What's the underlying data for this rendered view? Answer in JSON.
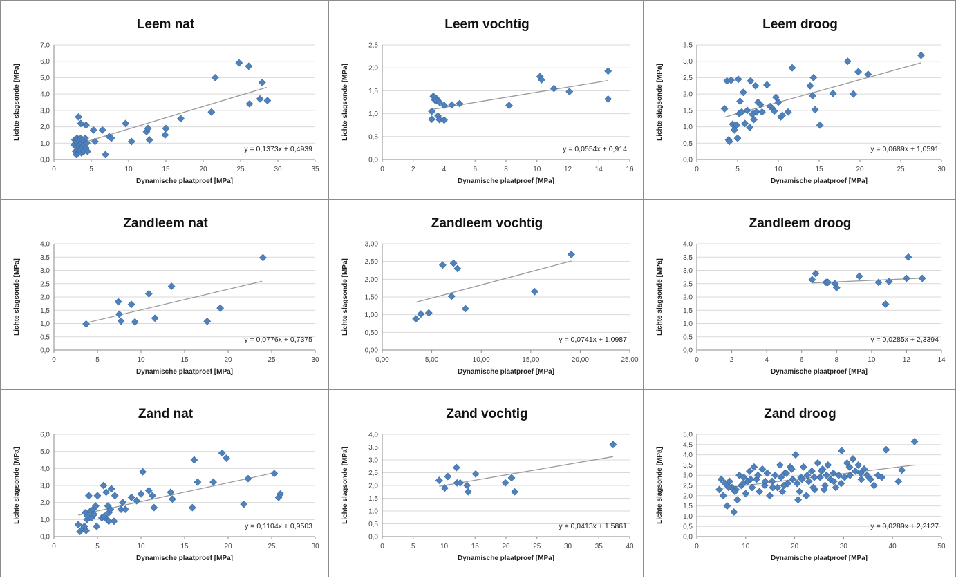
{
  "chart_data": [
    {
      "type": "scatter",
      "title": "Leem nat",
      "xlabel": "Dynamische plaatproef [MPa]",
      "ylabel": "Lichte slagsonde [MPa]",
      "xlim": [
        0,
        35
      ],
      "ylim": [
        0,
        7
      ],
      "xticks": [
        "0",
        "5",
        "10",
        "15",
        "20",
        "25",
        "30",
        "35"
      ],
      "yticks": [
        "0,0",
        "1,0",
        "2,0",
        "3,0",
        "4,0",
        "5,0",
        "6,0",
        "7,0"
      ],
      "equation": "y = 0,1373x + 0,4939",
      "trend": {
        "slope": 0.1373,
        "intercept": 0.4939,
        "x_range": [
          2.7,
          28.5
        ]
      },
      "x": [
        2.7,
        2.8,
        2.9,
        3.0,
        3.0,
        3.1,
        3.1,
        3.2,
        3.2,
        3.3,
        3.3,
        3.4,
        3.4,
        3.5,
        3.5,
        3.6,
        3.6,
        3.7,
        3.7,
        3.8,
        3.9,
        4.0,
        4.0,
        4.1,
        4.2,
        4.3,
        4.4,
        4.5,
        3.3,
        3.6,
        4.3,
        5.3,
        5.5,
        6.5,
        6.9,
        7.4,
        7.7,
        9.6,
        10.4,
        12.4,
        12.6,
        12.8,
        14.9,
        15.0,
        17.0,
        21.1,
        21.6,
        24.8,
        26.1,
        26.2,
        27.6,
        27.9,
        28.6
      ],
      "y": [
        0.9,
        1.2,
        0.5,
        1.1,
        0.3,
        0.8,
        1.3,
        0.6,
        1.0,
        0.4,
        1.2,
        0.7,
        1.1,
        0.5,
        0.9,
        1.3,
        0.6,
        1.0,
        0.4,
        1.2,
        0.8,
        1.1,
        0.5,
        0.9,
        1.3,
        0.7,
        1.0,
        0.5,
        2.6,
        2.2,
        2.1,
        1.8,
        1.1,
        1.8,
        0.3,
        1.4,
        1.3,
        2.2,
        1.1,
        1.7,
        1.9,
        1.2,
        1.5,
        1.9,
        2.5,
        2.9,
        5.0,
        5.9,
        5.7,
        3.4,
        3.7,
        4.7,
        3.6
      ]
    },
    {
      "type": "scatter",
      "title": "Leem vochtig",
      "xlabel": "Dynamische plaatproef [MPa]",
      "ylabel": "Lichte slagsonde [MPa]",
      "xlim": [
        0,
        16
      ],
      "ylim": [
        0,
        2.5
      ],
      "xticks": [
        "0",
        "2",
        "4",
        "6",
        "8",
        "10",
        "12",
        "14",
        "16"
      ],
      "yticks": [
        "0,0",
        "0,5",
        "1,0",
        "1,5",
        "2,0",
        "2,5"
      ],
      "equation": "y = 0,0554x + 0,914",
      "trend": {
        "slope": 0.0554,
        "intercept": 0.914,
        "x_range": [
          3.2,
          14.6
        ]
      },
      "x": [
        3.2,
        3.2,
        3.3,
        3.4,
        3.5,
        3.5,
        3.6,
        3.7,
        3.7,
        4.0,
        4.0,
        4.5,
        5.0,
        8.2,
        10.2,
        10.3,
        11.1,
        12.1,
        14.6,
        14.6
      ],
      "y": [
        1.05,
        0.88,
        1.38,
        1.3,
        1.33,
        1.28,
        0.95,
        1.25,
        0.87,
        1.18,
        0.86,
        1.19,
        1.22,
        1.18,
        1.81,
        1.74,
        1.55,
        1.48,
        1.93,
        1.32
      ]
    },
    {
      "type": "scatter",
      "title": "Leem droog",
      "xlabel": "Dynamische plaatproef [MPa]",
      "ylabel": "Lichte slagsonde [MPa]",
      "xlim": [
        0,
        30
      ],
      "ylim": [
        0,
        3.5
      ],
      "xticks": [
        "0",
        "5",
        "10",
        "15",
        "20",
        "25",
        "30"
      ],
      "yticks": [
        "0,0",
        "0,5",
        "1,0",
        "1,5",
        "2,0",
        "2,5",
        "3,0",
        "3,5"
      ],
      "equation": "y = 0,0689x + 1,0591",
      "trend": {
        "slope": 0.0689,
        "intercept": 1.0591,
        "x_range": [
          3.4,
          27.5
        ]
      },
      "x": [
        3.4,
        3.7,
        3.9,
        4.0,
        4.2,
        4.4,
        4.6,
        4.9,
        5.0,
        5.1,
        5.2,
        5.3,
        5.5,
        5.7,
        5.9,
        6.2,
        6.5,
        6.6,
        6.8,
        7.0,
        7.2,
        7.3,
        7.5,
        7.8,
        8.0,
        8.6,
        9.0,
        9.3,
        9.5,
        9.7,
        10.0,
        10.3,
        10.5,
        11.2,
        11.7,
        13.9,
        14.2,
        14.3,
        14.5,
        15.1,
        16.7,
        18.5,
        19.2,
        19.8,
        21.0,
        27.5
      ],
      "y": [
        1.55,
        2.4,
        0.6,
        0.55,
        2.42,
        1.08,
        0.9,
        1.05,
        0.65,
        2.45,
        1.4,
        1.78,
        1.45,
        2.05,
        1.1,
        1.5,
        0.98,
        2.4,
        1.38,
        1.22,
        2.25,
        1.45,
        1.75,
        1.68,
        1.45,
        2.28,
        1.62,
        1.55,
        1.48,
        1.9,
        1.75,
        1.3,
        1.35,
        1.45,
        2.8,
        2.25,
        1.95,
        2.5,
        1.52,
        1.05,
        2.02,
        3.0,
        2.0,
        2.68,
        2.6,
        3.18
      ]
    },
    {
      "type": "scatter",
      "title": "Zandleem nat",
      "xlabel": "Dynamische plaatproef [MPa]",
      "ylabel": "Lichte slagsonde [MPa]",
      "xlim": [
        0,
        30
      ],
      "ylim": [
        0,
        4
      ],
      "xticks": [
        "0",
        "5",
        "10",
        "15",
        "20",
        "25",
        "30"
      ],
      "yticks": [
        "0,0",
        "0,5",
        "1,0",
        "1,5",
        "2,0",
        "2,5",
        "3,0",
        "3,5",
        "4,0"
      ],
      "equation": "y = 0,0776x + 0,7375",
      "trend": {
        "slope": 0.0776,
        "intercept": 0.7375,
        "x_range": [
          3.7,
          23.9
        ]
      },
      "x": [
        3.7,
        7.4,
        7.5,
        7.7,
        8.9,
        9.3,
        10.9,
        11.6,
        13.5,
        17.6,
        19.1,
        24.0
      ],
      "y": [
        0.98,
        1.82,
        1.35,
        1.09,
        1.72,
        1.06,
        2.12,
        1.2,
        2.4,
        1.08,
        1.58,
        3.48
      ]
    },
    {
      "type": "scatter",
      "title": "Zandleem vochtig",
      "xlabel": "Dynamische plaatproef [MPa]",
      "ylabel": "Lichte slagsonde [MPa]",
      "xlim": [
        0,
        25
      ],
      "ylim": [
        0,
        3
      ],
      "xticks": [
        "0,00",
        "5,00",
        "10,00",
        "15,00",
        "20,00",
        "25,00"
      ],
      "yticks": [
        "0,00",
        "0,50",
        "1,00",
        "1,50",
        "2,00",
        "2,50",
        "3,00"
      ],
      "equation": "y = 0,0741x + 1,0987",
      "trend": {
        "slope": 0.0741,
        "intercept": 1.0987,
        "x_range": [
          3.4,
          19.1
        ]
      },
      "x": [
        3.4,
        3.9,
        4.7,
        6.1,
        7.0,
        7.2,
        7.6,
        8.4,
        15.4,
        19.1
      ],
      "y": [
        0.88,
        1.02,
        1.05,
        2.4,
        1.52,
        2.45,
        2.3,
        1.17,
        1.65,
        2.7
      ]
    },
    {
      "type": "scatter",
      "title": "Zandleem droog",
      "xlabel": "Dynamische plaatproef [MPa]",
      "ylabel": "Lichte slagsonde [MPa]",
      "xlim": [
        0,
        14
      ],
      "ylim": [
        0,
        4
      ],
      "xticks": [
        "0",
        "2",
        "4",
        "6",
        "8",
        "10",
        "12",
        "14"
      ],
      "yticks": [
        "0,0",
        "0,5",
        "1,0",
        "1,5",
        "2,0",
        "2,5",
        "3,0",
        "3,5",
        "4,0"
      ],
      "equation": "y = 0,0285x + 2,3394",
      "trend": {
        "slope": 0.0285,
        "intercept": 2.3394,
        "x_range": [
          6.6,
          12.9
        ]
      },
      "x": [
        6.6,
        6.8,
        7.4,
        7.5,
        7.9,
        8.0,
        9.3,
        10.4,
        10.8,
        11.0,
        12.0,
        12.1,
        12.9
      ],
      "y": [
        2.65,
        2.88,
        2.55,
        2.55,
        2.5,
        2.35,
        2.78,
        2.55,
        1.73,
        2.58,
        2.7,
        3.5,
        2.7
      ]
    },
    {
      "type": "scatter",
      "title": "Zand nat",
      "xlabel": "Dynamische plaatproef [MPa]",
      "ylabel": "Lichte slagsonde [MPa]",
      "xlim": [
        0,
        30
      ],
      "ylim": [
        0,
        6
      ],
      "xticks": [
        "0",
        "5",
        "10",
        "15",
        "20",
        "25",
        "30"
      ],
      "yticks": [
        "0,0",
        "1,0",
        "2,0",
        "3,0",
        "4,0",
        "5,0",
        "6,0"
      ],
      "equation": "y = 0,1104x + 0,9503",
      "trend": {
        "slope": 0.1104,
        "intercept": 0.9503,
        "x_range": [
          2.8,
          25.8
        ]
      },
      "x": [
        2.8,
        3.0,
        3.3,
        3.5,
        3.6,
        3.7,
        3.8,
        3.9,
        4.0,
        4.2,
        4.3,
        4.5,
        4.6,
        4.8,
        4.9,
        5.0,
        5.5,
        5.7,
        5.8,
        6.0,
        6.1,
        6.2,
        6.3,
        6.3,
        6.5,
        6.6,
        6.9,
        7.0,
        7.7,
        7.9,
        8.2,
        8.9,
        9.5,
        10.0,
        10.2,
        10.9,
        11.3,
        11.5,
        13.4,
        13.6,
        15.9,
        16.1,
        16.5,
        18.3,
        19.3,
        19.8,
        21.8,
        22.3,
        25.3,
        25.8,
        26.0
      ],
      "y": [
        0.7,
        0.3,
        0.45,
        0.6,
        1.4,
        0.35,
        1.0,
        1.2,
        2.4,
        1.5,
        1.1,
        1.6,
        1.3,
        1.8,
        0.6,
        2.4,
        1.1,
        3.0,
        1.2,
        2.6,
        1.0,
        1.8,
        1.4,
        0.9,
        1.6,
        2.8,
        0.9,
        2.4,
        1.6,
        2.0,
        1.6,
        2.3,
        2.1,
        2.5,
        3.8,
        2.7,
        2.4,
        1.7,
        2.6,
        2.2,
        1.7,
        4.5,
        3.2,
        3.2,
        4.9,
        4.6,
        1.9,
        3.4,
        3.7,
        2.3,
        2.5
      ]
    },
    {
      "type": "scatter",
      "title": "Zand vochtig",
      "xlabel": "Dynamische plaatproef [MPa]",
      "ylabel": "Lichte slagsonde [MPa]",
      "xlim": [
        0,
        40
      ],
      "ylim": [
        0,
        4
      ],
      "xticks": [
        "0",
        "5",
        "10",
        "15",
        "20",
        "25",
        "30",
        "35",
        "40"
      ],
      "yticks": [
        "0,0",
        "0,5",
        "1,0",
        "1,5",
        "2,0",
        "2,5",
        "3,0",
        "3,5",
        "4,0"
      ],
      "equation": "y = 0,0413x + 1,5861",
      "trend": {
        "slope": 0.0413,
        "intercept": 1.5861,
        "x_range": [
          9.2,
          37.3
        ]
      },
      "x": [
        9.2,
        10.1,
        10.6,
        12.0,
        12.1,
        12.6,
        13.7,
        13.9,
        15.1,
        19.9,
        20.9,
        21.4,
        37.3
      ],
      "y": [
        2.2,
        1.9,
        2.35,
        2.7,
        2.1,
        2.1,
        2.0,
        1.75,
        2.45,
        2.1,
        2.3,
        1.75,
        3.6
      ]
    },
    {
      "type": "scatter",
      "title": "Zand droog",
      "xlabel": "Dynamische plaatproef [MPa]",
      "ylabel": "Lichte slagsonde [MPa]",
      "xlim": [
        0,
        50
      ],
      "ylim": [
        0,
        5
      ],
      "xticks": [
        "0",
        "10",
        "20",
        "30",
        "40",
        "50"
      ],
      "yticks": [
        "0,0",
        "0,5",
        "1,0",
        "1,5",
        "2,0",
        "2,5",
        "3,0",
        "3,5",
        "4,0",
        "4,5",
        "5,0"
      ],
      "equation": "y = 0,0289x + 2,2127",
      "trend": {
        "slope": 0.0289,
        "intercept": 2.2127,
        "x_range": [
          4.5,
          44.5
        ]
      },
      "x": [
        4.6,
        5.0,
        5.4,
        5.8,
        6.2,
        6.7,
        7.2,
        7.6,
        8.0,
        8.3,
        8.7,
        9.1,
        9.6,
        10.0,
        10.4,
        10.8,
        11.3,
        11.7,
        12.2,
        12.8,
        13.4,
        13.9,
        14.4,
        14.9,
        15.4,
        16.0,
        16.5,
        17.0,
        17.5,
        18.0,
        18.6,
        19.1,
        19.6,
        20.2,
        20.7,
        21.3,
        21.8,
        22.4,
        22.9,
        23.5,
        24.1,
        24.7,
        25.2,
        25.7,
        26.2,
        26.8,
        27.3,
        27.9,
        28.4,
        29.0,
        29.6,
        30.2,
        30.7,
        31.3,
        31.9,
        32.4,
        33.0,
        33.6,
        34.2,
        34.8,
        35.5,
        36.2,
        37.0,
        37.8,
        38.7,
        41.2,
        41.9,
        44.5,
        6.5,
        7.8,
        9.5,
        11.0,
        12.5,
        14.0,
        15.5,
        17.2,
        18.3,
        19.4,
        20.5,
        21.5,
        22.6,
        24.0,
        25.5,
        26.5,
        28.0,
        29.5,
        31.2,
        33.5,
        17.8,
        21.0,
        23.8,
        26.0
      ],
      "y": [
        2.3,
        2.8,
        2.0,
        2.6,
        1.5,
        2.7,
        2.4,
        1.2,
        2.3,
        1.8,
        3.0,
        2.5,
        2.9,
        2.1,
        2.7,
        3.2,
        2.4,
        3.4,
        2.8,
        2.2,
        3.3,
        2.5,
        3.1,
        2.0,
        2.7,
        3.0,
        2.4,
        3.5,
        2.2,
        3.1,
        2.6,
        3.4,
        2.8,
        4.0,
        1.8,
        2.9,
        3.4,
        2.0,
        2.7,
        3.2,
        2.3,
        3.6,
        2.9,
        3.3,
        2.5,
        3.5,
        2.8,
        3.1,
        2.4,
        3.0,
        4.2,
        2.9,
        3.6,
        3.0,
        3.8,
        3.2,
        3.5,
        2.8,
        3.3,
        3.0,
        2.8,
        2.5,
        3.0,
        2.9,
        4.25,
        2.7,
        3.25,
        4.65,
        2.4,
        2.2,
        2.6,
        2.8,
        3.0,
        2.7,
        2.4,
        2.9,
        3.1,
        3.3,
        2.6,
        2.8,
        3.0,
        2.9,
        3.2,
        3.0,
        2.7,
        2.6,
        3.4,
        3.1,
        2.5,
        2.2,
        2.4,
        2.3
      ]
    }
  ]
}
